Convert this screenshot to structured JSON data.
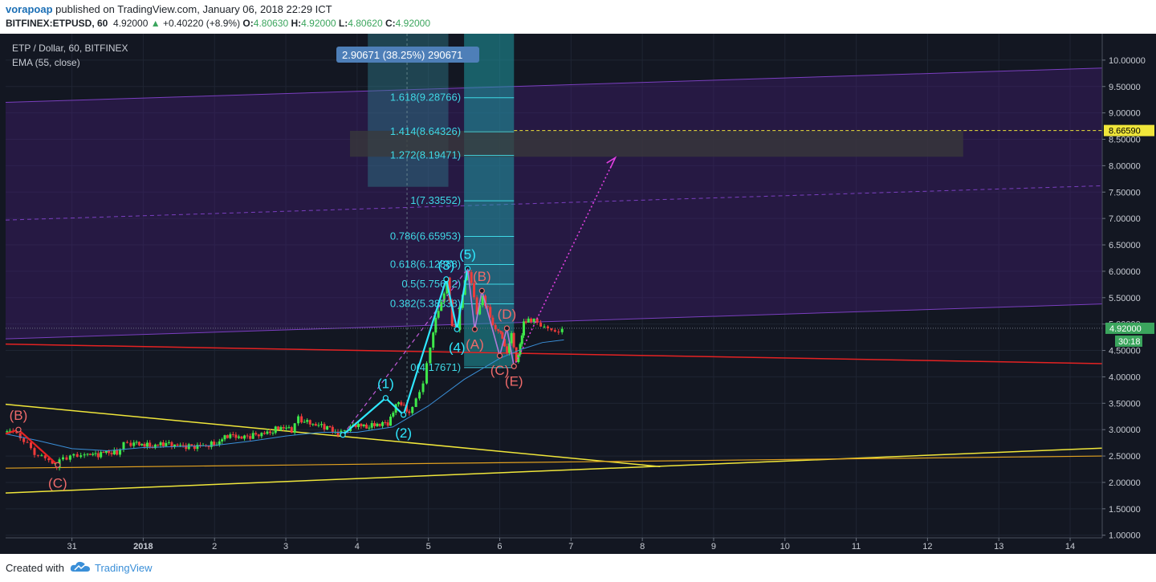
{
  "header": {
    "author": "vorapoap",
    "published_text": " published on TradingView.com, January 06, 2018 22:29 ICT",
    "symbol": "BITFINEX:ETPUSD, 60",
    "last": "4.92000",
    "change": "+0.40220 (+8.9%)",
    "o_label": "O:",
    "o_val": "4.80630",
    "h_label": "H:",
    "h_val": "4.92000",
    "l_label": "L:",
    "l_val": "4.80620",
    "c_label": "C:",
    "c_val": "4.92000"
  },
  "legend": {
    "title": "ETP / Dollar, 60, BITFINEX",
    "indicator": "EMA (55, close)"
  },
  "footer": {
    "created": "Created with",
    "brand": "TradingView"
  },
  "colors": {
    "background": "#131722",
    "bull": "#3ee84a",
    "bear": "#ef3b3b",
    "wave": "#2fe8ff",
    "correction": "#ef6a6a",
    "channel": "#7a3fbf",
    "fib": "#3fd9e6",
    "yellow_line": "#f0e63a",
    "red_line": "#e52222",
    "ema": "#3a8fd8"
  },
  "chart_data": {
    "type": "candlestick",
    "symbol": "ETPUSD",
    "interval": "60",
    "y_axis": {
      "ticks": [
        "10.00000",
        "9.50000",
        "9.00000",
        "8.50000",
        "8.00000",
        "7.50000",
        "7.00000",
        "6.50000",
        "6.00000",
        "5.50000",
        "5.00000",
        "4.50000",
        "4.00000",
        "3.50000",
        "3.00000",
        "2.50000",
        "2.00000",
        "1.50000",
        "1.00000"
      ],
      "range": [
        0.95,
        10.5
      ]
    },
    "x_axis": {
      "ticks": [
        {
          "label": "31",
          "day": 0
        },
        {
          "label": "2018",
          "day": 1
        },
        {
          "label": "2",
          "day": 2
        },
        {
          "label": "3",
          "day": 3
        },
        {
          "label": "4",
          "day": 4
        },
        {
          "label": "5",
          "day": 5
        },
        {
          "label": "6",
          "day": 6
        },
        {
          "label": "7",
          "day": 7
        },
        {
          "label": "8",
          "day": 8
        },
        {
          "label": "9",
          "day": 9
        },
        {
          "label": "10",
          "day": 10
        },
        {
          "label": "11",
          "day": 11
        },
        {
          "label": "12",
          "day": 12
        },
        {
          "label": "13",
          "day": 13
        },
        {
          "label": "14",
          "day": 14
        }
      ],
      "range": [
        -0.93,
        14.45
      ]
    },
    "price_labels": {
      "last_price": "4.92000",
      "last_value": 4.92,
      "countdown": "30:18",
      "target": "8.66590",
      "target_value": 8.6659
    },
    "projection_label": "2.90671 (38.25%) 290671",
    "price_path": [
      [
        -0.93,
        2.95
      ],
      [
        -0.85,
        2.98
      ],
      [
        -0.75,
        2.92
      ],
      [
        -0.65,
        2.8
      ],
      [
        -0.55,
        2.62
      ],
      [
        -0.45,
        2.52
      ],
      [
        -0.35,
        2.45
      ],
      [
        -0.25,
        2.38
      ],
      [
        -0.2,
        2.33
      ],
      [
        -0.1,
        2.45
      ],
      [
        0.0,
        2.52
      ],
      [
        0.1,
        2.48
      ],
      [
        0.2,
        2.55
      ],
      [
        0.35,
        2.52
      ],
      [
        0.5,
        2.58
      ],
      [
        0.65,
        2.55
      ],
      [
        0.75,
        2.72
      ],
      [
        0.85,
        2.75
      ],
      [
        1.0,
        2.72
      ],
      [
        1.15,
        2.68
      ],
      [
        1.3,
        2.74
      ],
      [
        1.5,
        2.7
      ],
      [
        1.7,
        2.68
      ],
      [
        1.9,
        2.7
      ],
      [
        2.05,
        2.73
      ],
      [
        2.2,
        2.9
      ],
      [
        2.4,
        2.85
      ],
      [
        2.6,
        2.9
      ],
      [
        2.8,
        2.95
      ],
      [
        2.95,
        3.05
      ],
      [
        3.1,
        3.0
      ],
      [
        3.2,
        3.2
      ],
      [
        3.4,
        3.1
      ],
      [
        3.6,
        3.05
      ],
      [
        3.75,
        2.92
      ],
      [
        3.85,
        2.97
      ],
      [
        4.0,
        3.1
      ],
      [
        4.15,
        3.05
      ],
      [
        4.3,
        3.1
      ],
      [
        4.45,
        3.12
      ],
      [
        4.6,
        3.55
      ],
      [
        4.75,
        3.3
      ],
      [
        4.85,
        3.6
      ],
      [
        4.95,
        3.85
      ],
      [
        5.05,
        4.6
      ],
      [
        5.12,
        5.1
      ],
      [
        5.2,
        5.4
      ],
      [
        5.28,
        5.85
      ],
      [
        5.35,
        5.0
      ],
      [
        5.42,
        4.9
      ],
      [
        5.5,
        5.6
      ],
      [
        5.55,
        6.05
      ],
      [
        5.62,
        5.8
      ],
      [
        5.7,
        5.2
      ],
      [
        5.78,
        5.5
      ],
      [
        5.85,
        5.3
      ],
      [
        5.92,
        4.95
      ],
      [
        6.0,
        4.9
      ],
      [
        6.05,
        4.7
      ],
      [
        6.12,
        4.48
      ],
      [
        6.18,
        4.8
      ],
      [
        6.25,
        4.3
      ],
      [
        6.3,
        4.6
      ],
      [
        6.35,
        5.0
      ],
      [
        6.42,
        5.1
      ],
      [
        6.5,
        5.05
      ],
      [
        6.6,
        5.0
      ],
      [
        6.7,
        4.9
      ],
      [
        6.8,
        4.85
      ],
      [
        6.9,
        4.92
      ]
    ],
    "ema": [
      [
        -0.93,
        2.92
      ],
      [
        -0.5,
        2.8
      ],
      [
        0.0,
        2.64
      ],
      [
        0.5,
        2.6
      ],
      [
        1.0,
        2.66
      ],
      [
        1.5,
        2.68
      ],
      [
        2.0,
        2.7
      ],
      [
        2.5,
        2.78
      ],
      [
        3.0,
        2.88
      ],
      [
        3.5,
        2.95
      ],
      [
        4.0,
        2.95
      ],
      [
        4.5,
        3.05
      ],
      [
        5.0,
        3.45
      ],
      [
        5.5,
        3.95
      ],
      [
        6.0,
        4.35
      ],
      [
        6.3,
        4.52
      ],
      [
        6.6,
        4.65
      ],
      [
        6.9,
        4.7
      ]
    ],
    "fib_levels": [
      {
        "label": "1.618(9.28766)",
        "value": 9.28766
      },
      {
        "label": "1.414(8.64326)",
        "value": 8.64326
      },
      {
        "label": "1.272(8.19471)",
        "value": 8.19471
      },
      {
        "label": "1(7.33552)",
        "value": 7.33552
      },
      {
        "label": "0.786(6.65953)",
        "value": 6.65953
      },
      {
        "label": "0.618(6.12888)",
        "value": 6.12888
      },
      {
        "label": "0.5(5.75612)",
        "value": 5.75612
      },
      {
        "label": "0.382(5.38338)",
        "value": 5.38338
      },
      {
        "label": "0(4.17671)",
        "value": 4.17671
      }
    ],
    "impulse_wave": [
      {
        "label": "",
        "x": 3.8,
        "y": 2.9
      },
      {
        "label": "(1)",
        "x": 4.4,
        "y": 3.6
      },
      {
        "label": "(2)",
        "x": 4.65,
        "y": 3.28
      },
      {
        "label": "(3)",
        "x": 5.25,
        "y": 5.85
      },
      {
        "label": "(4)",
        "x": 5.4,
        "y": 4.9
      },
      {
        "label": "(5)",
        "x": 5.55,
        "y": 6.05
      }
    ],
    "correction_wave": [
      {
        "label": "(A)",
        "x": 5.65,
        "y": 4.9
      },
      {
        "label": "(B)",
        "x": 5.75,
        "y": 5.63
      },
      {
        "label": "(C)",
        "x": 6.0,
        "y": 4.4
      },
      {
        "label": "(D)",
        "x": 6.1,
        "y": 4.92
      },
      {
        "label": "(E)",
        "x": 6.2,
        "y": 4.2
      }
    ],
    "early_wave": [
      {
        "label": "(B)",
        "x": -0.75,
        "y": 3.0
      },
      {
        "label": "(C)",
        "x": -0.2,
        "y": 2.33
      }
    ]
  }
}
